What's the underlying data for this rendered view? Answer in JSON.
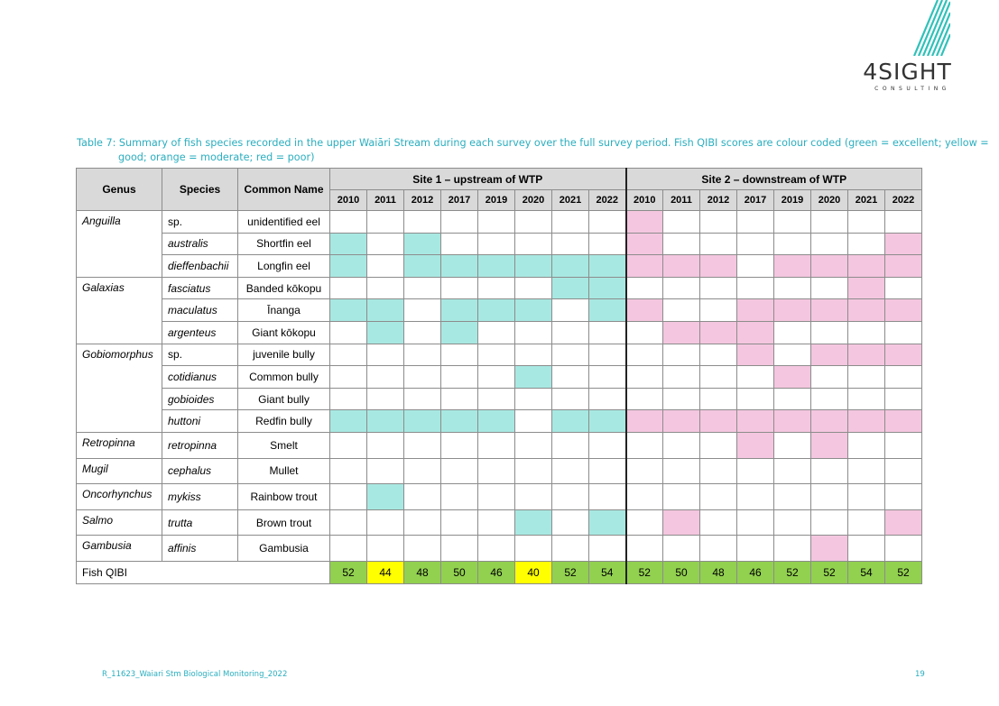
{
  "logo": {
    "word": "4SIGHT",
    "sub": "CONSULTING",
    "stripe_color": "#2fc1b9"
  },
  "caption": "Table 7: Summary of fish species recorded in the upper Waiāri Stream during each survey over the full survey period. Fish QIBI scores are colour coded (green = excellent; yellow = good; orange = moderate; red = poor)",
  "table": {
    "headers": {
      "genus": "Genus",
      "species": "Species",
      "common": "Common Name"
    },
    "site1": "Site 1 – upstream of WTP",
    "site2": "Site 2 – downstream of WTP",
    "years": [
      "2010",
      "2011",
      "2012",
      "2017",
      "2019",
      "2020",
      "2021",
      "2022"
    ],
    "colors": {
      "site1": "#a8e8e2",
      "site2": "#f4c6df",
      "excellent": "#92d050",
      "good": "#ffff00"
    },
    "rows": [
      {
        "genus": "Anguilla",
        "species": "sp.",
        "species_italic": false,
        "common": "unidentified eel",
        "site1": [
          0,
          0,
          0,
          0,
          0,
          0,
          0,
          0
        ],
        "site2": [
          1,
          0,
          0,
          0,
          0,
          0,
          0,
          0
        ]
      },
      {
        "genus": "",
        "species": "australis",
        "species_italic": true,
        "common": "Shortfin eel",
        "site1": [
          1,
          0,
          1,
          0,
          0,
          0,
          0,
          0
        ],
        "site2": [
          1,
          0,
          0,
          0,
          0,
          0,
          0,
          1
        ]
      },
      {
        "genus": "",
        "species": "dieffenbachii",
        "species_italic": true,
        "common": "Longfin eel",
        "site1": [
          1,
          0,
          1,
          1,
          1,
          1,
          1,
          1
        ],
        "site2": [
          1,
          1,
          1,
          0,
          1,
          1,
          1,
          1
        ]
      },
      {
        "genus": "Galaxias",
        "species": "fasciatus",
        "species_italic": true,
        "common": "Banded kōkopu",
        "site1": [
          0,
          0,
          0,
          0,
          0,
          0,
          1,
          1
        ],
        "site2": [
          0,
          0,
          0,
          0,
          0,
          0,
          1,
          0
        ]
      },
      {
        "genus": "",
        "species": "maculatus",
        "species_italic": true,
        "common": "Īnanga",
        "site1": [
          1,
          1,
          0,
          1,
          1,
          1,
          0,
          1
        ],
        "site2": [
          1,
          0,
          0,
          1,
          1,
          1,
          1,
          1
        ]
      },
      {
        "genus": "",
        "species": "argenteus",
        "species_italic": true,
        "common": "Giant kōkopu",
        "site1": [
          0,
          1,
          0,
          1,
          0,
          0,
          0,
          0
        ],
        "site2": [
          0,
          1,
          1,
          1,
          0,
          0,
          0,
          0
        ]
      },
      {
        "genus": "Gobiomorphus",
        "species": "sp.",
        "species_italic": false,
        "common": "juvenile bully",
        "site1": [
          0,
          0,
          0,
          0,
          0,
          0,
          0,
          0
        ],
        "site2": [
          0,
          0,
          0,
          1,
          0,
          1,
          1,
          1
        ]
      },
      {
        "genus": "",
        "species": "cotidianus",
        "species_italic": true,
        "common": "Common bully",
        "site1": [
          0,
          0,
          0,
          0,
          0,
          1,
          0,
          0
        ],
        "site2": [
          0,
          0,
          0,
          0,
          1,
          0,
          0,
          0
        ]
      },
      {
        "genus": "",
        "species": "gobioides",
        "species_italic": true,
        "common": "Giant bully",
        "site1": [
          0,
          0,
          0,
          0,
          0,
          0,
          0,
          0
        ],
        "site2": [
          0,
          0,
          0,
          0,
          0,
          0,
          0,
          0
        ]
      },
      {
        "genus": "",
        "species": "huttoni",
        "species_italic": true,
        "common": "Redfin bully",
        "site1": [
          1,
          1,
          1,
          1,
          1,
          0,
          1,
          1
        ],
        "site2": [
          1,
          1,
          1,
          1,
          1,
          1,
          1,
          1
        ]
      },
      {
        "genus": "Retropinna",
        "species": "retropinna",
        "species_italic": true,
        "common": "Smelt",
        "site1": [
          0,
          0,
          0,
          0,
          0,
          0,
          0,
          0
        ],
        "site2": [
          0,
          0,
          0,
          1,
          0,
          1,
          0,
          0
        ]
      },
      {
        "genus": "Mugil",
        "species": "cephalus",
        "species_italic": true,
        "common": "Mullet",
        "site1": [
          0,
          0,
          0,
          0,
          0,
          0,
          0,
          0
        ],
        "site2": [
          0,
          0,
          0,
          0,
          0,
          0,
          0,
          0
        ]
      },
      {
        "genus": "Oncorhynchus",
        "species": "mykiss",
        "species_italic": true,
        "common": "Rainbow trout",
        "site1": [
          0,
          1,
          0,
          0,
          0,
          0,
          0,
          0
        ],
        "site2": [
          0,
          0,
          0,
          0,
          0,
          0,
          0,
          0
        ]
      },
      {
        "genus": "Salmo",
        "species": "trutta",
        "species_italic": true,
        "common": "Brown trout",
        "site1": [
          0,
          0,
          0,
          0,
          0,
          1,
          0,
          1
        ],
        "site2": [
          0,
          1,
          0,
          0,
          0,
          0,
          0,
          1
        ]
      },
      {
        "genus": "Gambusia",
        "species": "affinis",
        "species_italic": true,
        "common": "Gambusia",
        "site1": [
          0,
          0,
          0,
          0,
          0,
          0,
          0,
          0
        ],
        "site2": [
          0,
          0,
          0,
          0,
          0,
          1,
          0,
          0
        ]
      }
    ],
    "qibi_label": "Fish QIBI",
    "qibi_site1": [
      {
        "value": "52",
        "rating": "excellent"
      },
      {
        "value": "44",
        "rating": "good"
      },
      {
        "value": "48",
        "rating": "excellent"
      },
      {
        "value": "50",
        "rating": "excellent"
      },
      {
        "value": "46",
        "rating": "excellent"
      },
      {
        "value": "40",
        "rating": "good"
      },
      {
        "value": "52",
        "rating": "excellent"
      },
      {
        "value": "54",
        "rating": "excellent"
      }
    ],
    "qibi_site2": [
      {
        "value": "52",
        "rating": "excellent"
      },
      {
        "value": "50",
        "rating": "excellent"
      },
      {
        "value": "48",
        "rating": "excellent"
      },
      {
        "value": "46",
        "rating": "excellent"
      },
      {
        "value": "52",
        "rating": "excellent"
      },
      {
        "value": "52",
        "rating": "excellent"
      },
      {
        "value": "54",
        "rating": "excellent"
      },
      {
        "value": "52",
        "rating": "excellent"
      }
    ]
  },
  "footer": {
    "left": "R_11623_Waiari Stm Biological Monitoring_2022",
    "right": "19"
  }
}
